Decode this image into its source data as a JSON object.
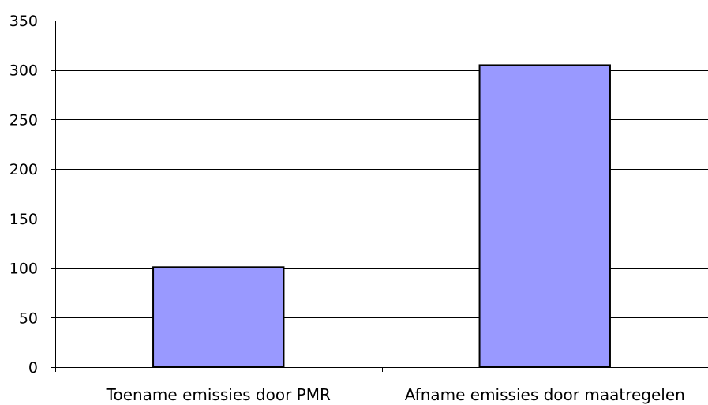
{
  "chart_data": {
    "type": "bar",
    "categories": [
      "Toename emissies door PMR",
      "Afname emissies door maatregelen"
    ],
    "values": [
      101,
      305
    ],
    "title": "",
    "xlabel": "",
    "ylabel": "",
    "ylim": [
      0,
      350
    ],
    "yticks": [
      0,
      50,
      100,
      150,
      200,
      250,
      300,
      350
    ],
    "grid": true,
    "legend": "none",
    "bar_color": "#9999ff",
    "bar_edge_color": "#000000",
    "gridline_color": "#000000"
  }
}
